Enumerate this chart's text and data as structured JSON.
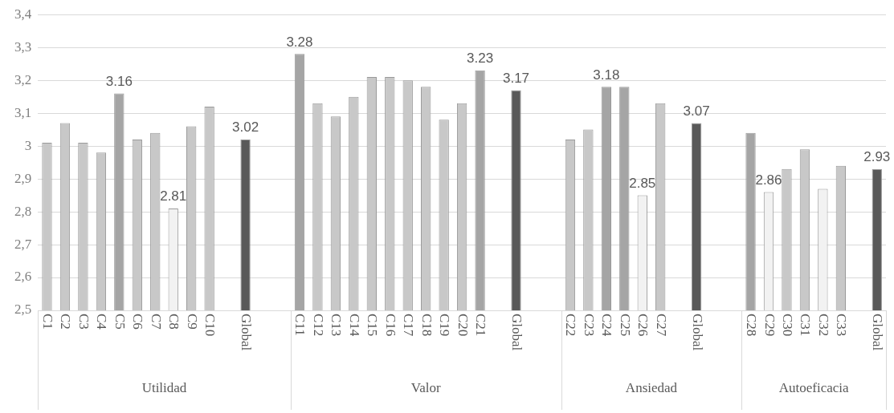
{
  "chart_data": {
    "type": "bar",
    "categories": [
      "C1",
      "C2",
      "C3",
      "C4",
      "C5",
      "C6",
      "C7",
      "C8",
      "C9",
      "C10",
      null,
      "Global",
      null,
      null,
      "C11",
      "C12",
      "C13",
      "C14",
      "C15",
      "C16",
      "C17",
      "C18",
      "C19",
      "C20",
      "C21",
      null,
      "Global",
      null,
      null,
      "C22",
      "C23",
      "C24",
      "C25",
      "C26",
      "C27",
      null,
      "Global",
      null,
      null,
      "C28",
      "C29",
      "C30",
      "C31",
      "C32",
      "C33",
      null,
      "Global"
    ],
    "values": [
      3.01,
      3.07,
      3.01,
      2.98,
      3.16,
      3.02,
      3.04,
      2.81,
      3.06,
      3.12,
      null,
      3.02,
      null,
      null,
      3.28,
      3.13,
      3.09,
      3.15,
      3.21,
      3.21,
      3.2,
      3.18,
      3.08,
      3.13,
      3.23,
      null,
      3.17,
      null,
      null,
      3.02,
      3.05,
      3.18,
      3.18,
      2.85,
      3.13,
      null,
      3.07,
      null,
      null,
      3.04,
      2.86,
      2.93,
      2.99,
      2.87,
      2.94,
      null,
      2.93
    ],
    "colors": [
      "#c8c8c8",
      "#c8c8c8",
      "#c8c8c8",
      "#c8c8c8",
      "#a5a5a5",
      "#c8c8c8",
      "#c8c8c8",
      "#f2f2f2",
      "#c8c8c8",
      "#c8c8c8",
      null,
      "#595959",
      null,
      null,
      "#a5a5a5",
      "#c8c8c8",
      "#c8c8c8",
      "#c8c8c8",
      "#c8c8c8",
      "#c8c8c8",
      "#c8c8c8",
      "#c8c8c8",
      "#c8c8c8",
      "#c8c8c8",
      "#a5a5a5",
      null,
      "#595959",
      null,
      null,
      "#c8c8c8",
      "#c8c8c8",
      "#a5a5a5",
      "#a5a5a5",
      "#f2f2f2",
      "#c8c8c8",
      null,
      "#595959",
      null,
      null,
      "#a5a5a5",
      "#f2f2f2",
      "#c8c8c8",
      "#c8c8c8",
      "#f2f2f2",
      "#c8c8c8",
      null,
      "#595959"
    ],
    "value_labels": [
      null,
      null,
      null,
      null,
      "3.16",
      null,
      null,
      "2.81",
      null,
      null,
      null,
      "3.02",
      null,
      null,
      "3.28",
      null,
      null,
      null,
      null,
      null,
      null,
      null,
      null,
      null,
      "3.23",
      null,
      "3.17",
      null,
      null,
      null,
      null,
      "3.18",
      null,
      "2.85",
      null,
      null,
      "3.07",
      null,
      null,
      null,
      "2.86",
      null,
      null,
      null,
      null,
      null,
      "2.93"
    ],
    "annotations": [
      "Utilidad",
      "Valor",
      "Ansiedad",
      "Autoeficacia"
    ],
    "ylim": [
      2.5,
      3.4
    ],
    "yticks": [
      {
        "value": 2.5,
        "label": "2,5"
      },
      {
        "value": 2.6,
        "label": "2,6"
      },
      {
        "value": 2.7,
        "label": "2,7"
      },
      {
        "value": 2.8,
        "label": "2,8"
      },
      {
        "value": 2.9,
        "label": "2,9"
      },
      3,
      {
        "value": 3.1,
        "label": "3,1"
      },
      {
        "value": 3.2,
        "label": "3,2"
      },
      {
        "value": 3.3,
        "label": "3,3"
      },
      {
        "value": 3.4,
        "label": "3,4"
      }
    ],
    "grid": "y",
    "legend": false
  }
}
